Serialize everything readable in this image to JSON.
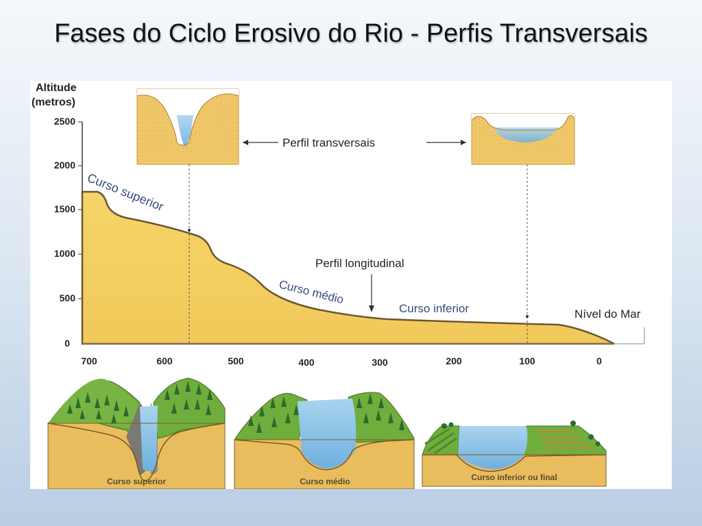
{
  "slide": {
    "title": "Fases do Ciclo Erosivo do Rio - Perfis Transversais"
  },
  "figure": {
    "y_axis_title_line1": "Altitude",
    "y_axis_title_line2": "(metros)",
    "y_ticks": [
      "2500",
      "2000",
      "1500",
      "1000",
      "500",
      "0"
    ],
    "x_ticks": [
      "700",
      "600",
      "500",
      "400",
      "300",
      "200",
      "100",
      "0"
    ],
    "labels": {
      "perfil_transversais": "Perfil transversais",
      "perfil_longitudinal": "Perfil longitudinal",
      "curso_superior": "Curso superior",
      "curso_medio": "Curso médio",
      "curso_inferior": "Curso inferior",
      "nivel_do_mar": "Nível do Mar"
    },
    "block_diagrams": [
      {
        "caption": "Curso superior"
      },
      {
        "caption": "Curso médio"
      },
      {
        "caption": "Curso inferior ou final"
      }
    ]
  },
  "colors": {
    "sand": "#f1cf63",
    "profile_line": "#6b5630",
    "grass": "#6fae3c",
    "water": "#8ec3e8",
    "label_blue": "#34497e"
  }
}
